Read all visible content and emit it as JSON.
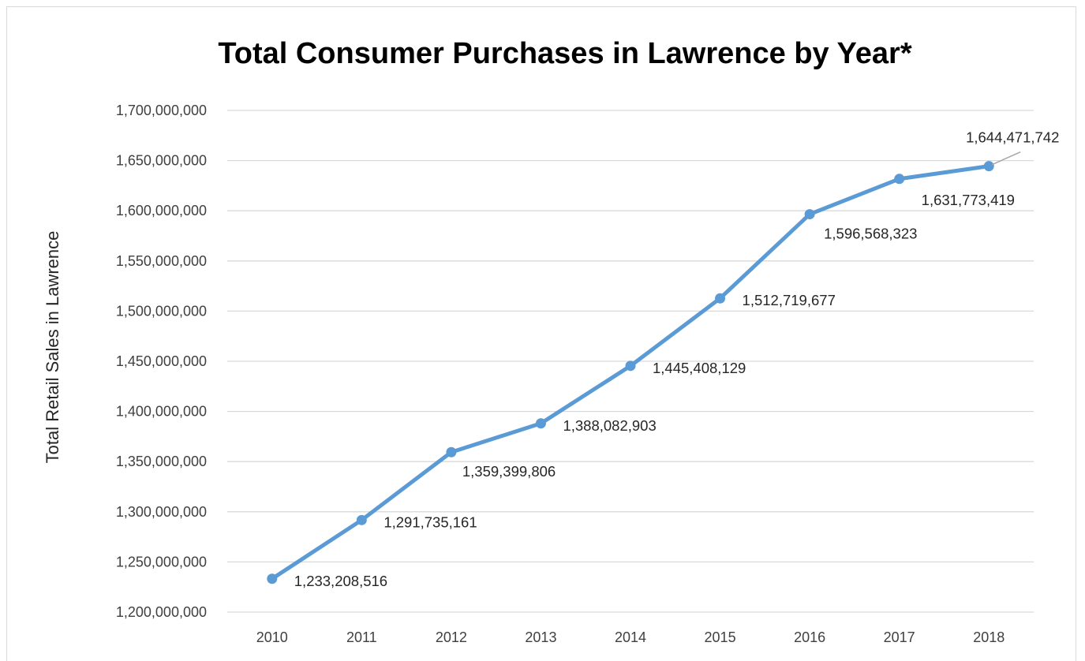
{
  "chart_data": {
    "type": "line",
    "title": "Total Consumer Purchases in Lawrence by Year*",
    "xlabel": "",
    "ylabel": "Total Retail Sales in Lawrence",
    "categories": [
      "2010",
      "2011",
      "2012",
      "2013",
      "2014",
      "2015",
      "2016",
      "2017",
      "2018"
    ],
    "series": [
      {
        "values": [
          1233208516,
          1291735161,
          1359399806,
          1388082903,
          1445408129,
          1512719677,
          1596568323,
          1631773419,
          1644471742
        ],
        "labels": [
          "1,233,208,516",
          "1,291,735,161",
          "1,359,399,806",
          "1,388,082,903",
          "1,445,408,129",
          "1,512,719,677",
          "1,596,568,323",
          "1,631,773,419",
          "1,644,471,742"
        ]
      }
    ],
    "ylim": [
      1200000000,
      1700000000
    ],
    "yticks": [
      1200000000,
      1250000000,
      1300000000,
      1350000000,
      1400000000,
      1450000000,
      1500000000,
      1550000000,
      1600000000,
      1650000000,
      1700000000
    ],
    "ytick_labels": [
      "1,200,000,000",
      "1,250,000,000",
      "1,300,000,000",
      "1,350,000,000",
      "1,400,000,000",
      "1,450,000,000",
      "1,500,000,000",
      "1,550,000,000",
      "1,600,000,000",
      "1,650,000,000",
      "1,700,000,000"
    ],
    "grid": true,
    "legend": "none",
    "colors": {
      "line": "#5b9bd5",
      "grid": "#d9d9d9",
      "text": "#404040"
    }
  }
}
